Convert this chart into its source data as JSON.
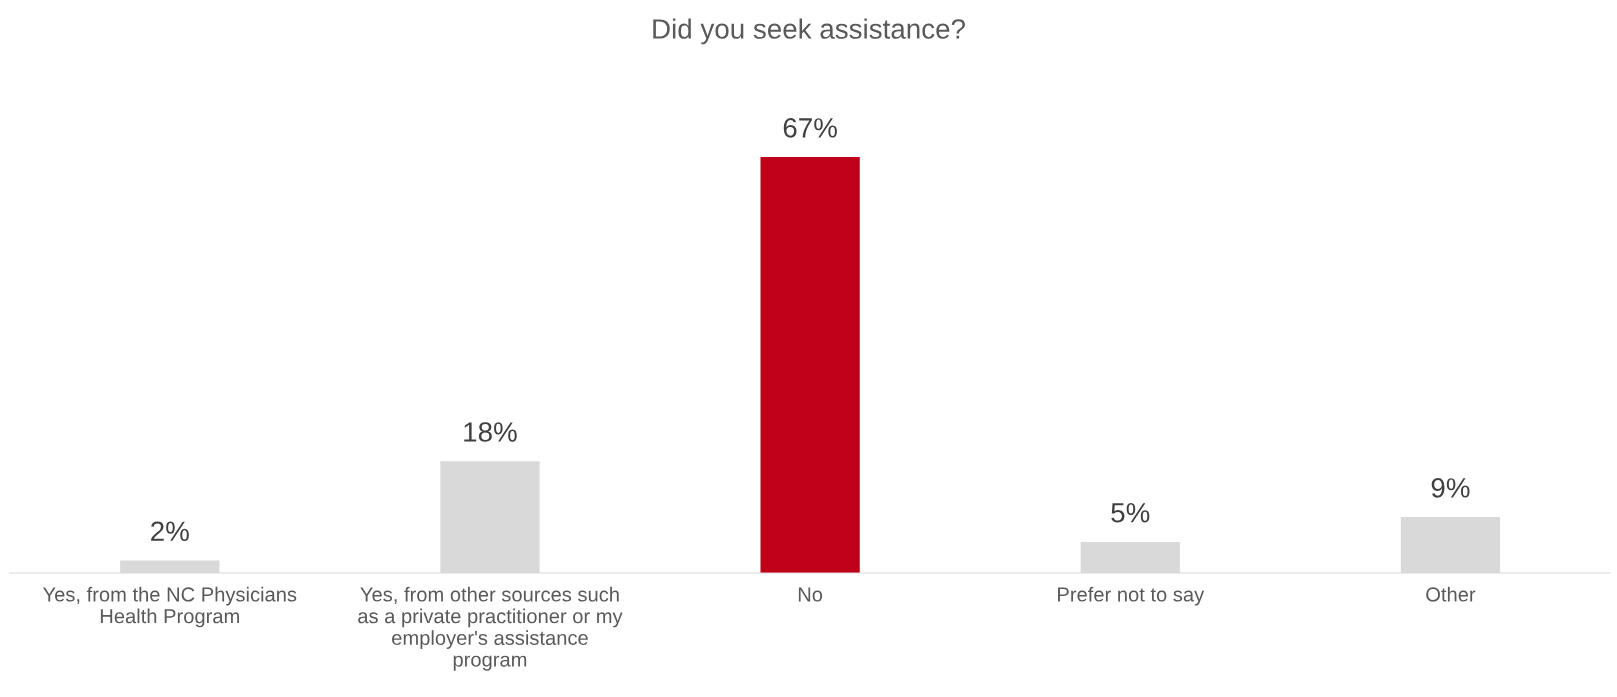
{
  "chart_data": {
    "type": "bar",
    "title": "Did you seek assistance?",
    "categories": [
      "Yes, from the NC Physicians\nHealth Program",
      "Yes, from other sources such\nas a private practitioner or my\nemployer's assistance\nprogram",
      "No",
      "Prefer not to say",
      "Other"
    ],
    "values": [
      2,
      18,
      67,
      5,
      9
    ],
    "colors": [
      "#d9d9d9",
      "#d9d9d9",
      "#c00018",
      "#d9d9d9",
      "#d9d9d9"
    ],
    "value_labels": [
      "2%",
      "18%",
      "67%",
      "5%",
      "9%"
    ]
  }
}
